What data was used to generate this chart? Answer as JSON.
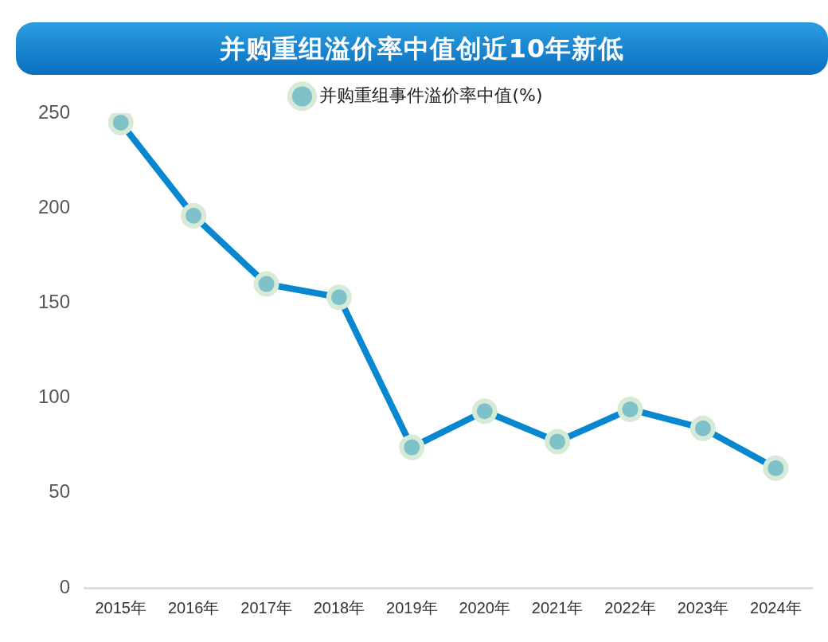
{
  "chart_data": {
    "type": "line",
    "title": "并购重组溢价率中值创近10年新低",
    "categories": [
      "2015年",
      "2016年",
      "2017年",
      "2018年",
      "2019年",
      "2020年",
      "2021年",
      "2022年",
      "2023年",
      "2024年"
    ],
    "series": [
      {
        "name": "并购重组事件溢价率中值(%)",
        "color": "#0787d0",
        "values": [
          245,
          196,
          160,
          153,
          74,
          93,
          77,
          94,
          84,
          63
        ]
      }
    ],
    "ylim": [
      0,
      250
    ],
    "yticks": [
      0,
      50,
      100,
      150,
      200,
      250
    ],
    "grid": false,
    "legend": "top",
    "marker": "circle",
    "line_style": "solid"
  }
}
